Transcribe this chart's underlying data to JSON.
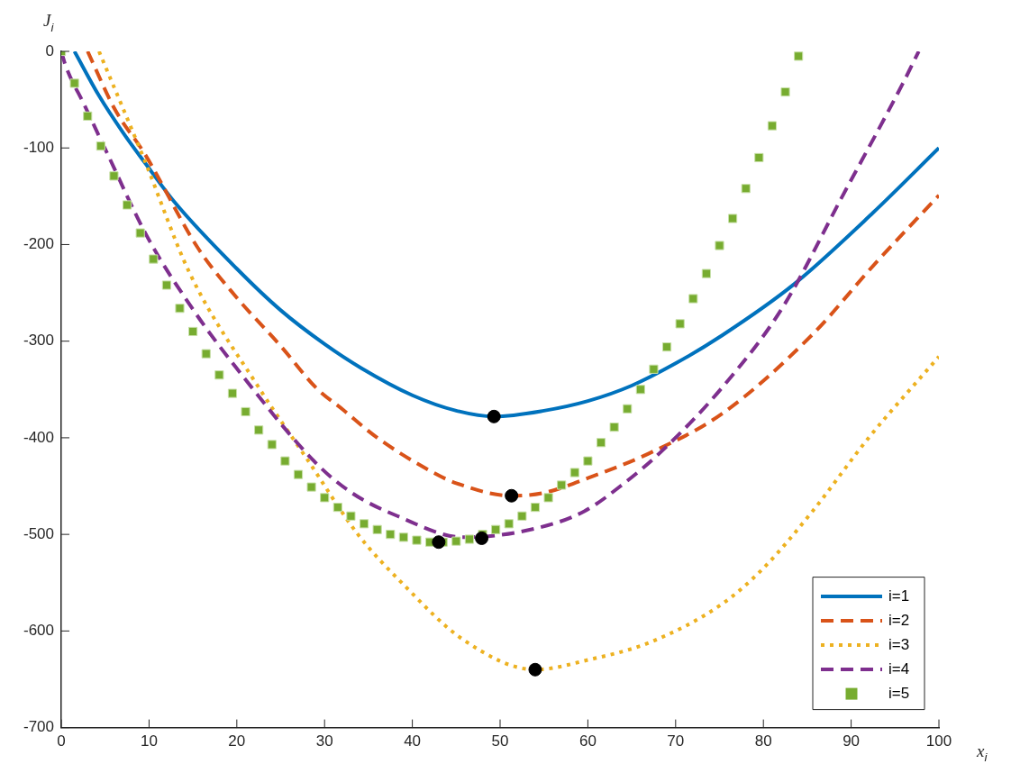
{
  "chart_data": {
    "type": "line",
    "xlabel": "x$_{i}$",
    "ylabel": "J$_{i}$",
    "xlim": [
      0,
      100
    ],
    "xticks": [
      0,
      10,
      20,
      30,
      40,
      50,
      60,
      70,
      80,
      90,
      100
    ],
    "ylim": [
      -700,
      0
    ],
    "yticks": [
      -700,
      -600,
      -500,
      -400,
      -300,
      -200,
      -100,
      0
    ],
    "grid": false,
    "legend": "bottom right",
    "series": [
      {
        "name": "i=1",
        "color": "#0072bd",
        "line_style": "solid",
        "marker": "none",
        "x": [
          1.5,
          4.3,
          7.1,
          9.5,
          12.9,
          20,
          25,
          30,
          34.2,
          40,
          45,
          49.3,
          55,
          60,
          65,
          70,
          75.3,
          83.5,
          92.5,
          100
        ],
        "values": [
          0,
          -46,
          -85,
          -115,
          -156,
          -225,
          -268,
          -303,
          -328,
          -356,
          -372,
          -378,
          -372,
          -362,
          -346,
          -323,
          -294,
          -241,
          -167,
          -100
        ]
      },
      {
        "name": "i=2",
        "color": "#d95319",
        "line_style": "dashed",
        "marker": "none",
        "x": [
          3,
          6.1,
          9.5,
          15.6,
          20,
          25,
          29,
          32.1,
          36,
          42.4,
          45,
          51.3,
          55,
          60.2,
          67,
          75.3,
          85.6,
          92.5,
          100
        ],
        "values": [
          0,
          -60,
          -106,
          -204,
          -255,
          -305,
          -348,
          -371,
          -400,
          -436,
          -447,
          -460,
          -457,
          -441,
          -416,
          -375,
          -293,
          -222,
          -149
        ]
      },
      {
        "name": "i=3",
        "color": "#edb120",
        "line_style": "dotted",
        "marker": "none",
        "x": [
          4.3,
          9.5,
          14.6,
          22.5,
          28,
          33.8,
          39,
          45.8,
          54,
          60,
          67,
          75.3,
          80,
          85.6,
          92,
          100
        ],
        "values": [
          0,
          -113,
          -229,
          -348,
          -422,
          -500,
          -552,
          -609,
          -640,
          -630,
          -612,
          -572,
          -535,
          -476,
          -400,
          -316
        ]
      },
      {
        "name": "i=4",
        "color": "#7e2f8e",
        "line_style": "dashed",
        "marker": "none",
        "x": [
          0,
          0.5,
          2.6,
          5,
          9.8,
          15.3,
          19.8,
          29,
          33.1,
          38.3,
          45.8,
          54,
          59.6,
          64,
          68.4,
          75.3,
          82.2,
          89,
          95.9,
          97.7
        ],
        "values": [
          0,
          -15,
          -55,
          -101,
          -192,
          -271,
          -326,
          -426,
          -457,
          -481,
          -503,
          -494,
          -476,
          -448,
          -414,
          -348,
          -265,
          -150,
          -33,
          0
        ]
      },
      {
        "name": "i=5",
        "color": "#77ac30",
        "type": "scatter",
        "marker": "square",
        "x": [
          0,
          1.5,
          3,
          4.5,
          6,
          7.5,
          9,
          10.5,
          12,
          13.5,
          15,
          16.5,
          18,
          19.5,
          21,
          22.5,
          24,
          25.5,
          27,
          28.5,
          30,
          31.5,
          33,
          34.5,
          36,
          37.5,
          39,
          40.5,
          42,
          43.5,
          45,
          46.5,
          48,
          49.5,
          51,
          52.5,
          54,
          55.5,
          57,
          58.5,
          60,
          61.5,
          63,
          64.5,
          66,
          67.5,
          69,
          70.5,
          72,
          73.5,
          75,
          76.5,
          78,
          79.5,
          81,
          82.5,
          84
        ],
        "values": [
          0,
          -33,
          -67,
          -98,
          -129,
          -159,
          -188,
          -215,
          -242,
          -266,
          -290,
          -313,
          -335,
          -354,
          -373,
          -392,
          -407,
          -424,
          -438,
          -451,
          -462,
          -472,
          -481,
          -489,
          -495,
          -500,
          -503,
          -506,
          -508,
          -508,
          -507,
          -505,
          -500,
          -495,
          -489,
          -481,
          -472,
          -462,
          -449,
          -436,
          -424,
          -405,
          -389,
          -370,
          -350,
          -329,
          -306,
          -282,
          -256,
          -230,
          -201,
          -173,
          -142,
          -110,
          -77,
          -42,
          -5
        ]
      },
      {
        "color": "#000000",
        "type": "scatter",
        "marker": "circle",
        "x": [
          49.3,
          51.3,
          54,
          47.9,
          43
        ],
        "values": [
          -378,
          -460,
          -640,
          -504,
          -508
        ]
      }
    ]
  }
}
